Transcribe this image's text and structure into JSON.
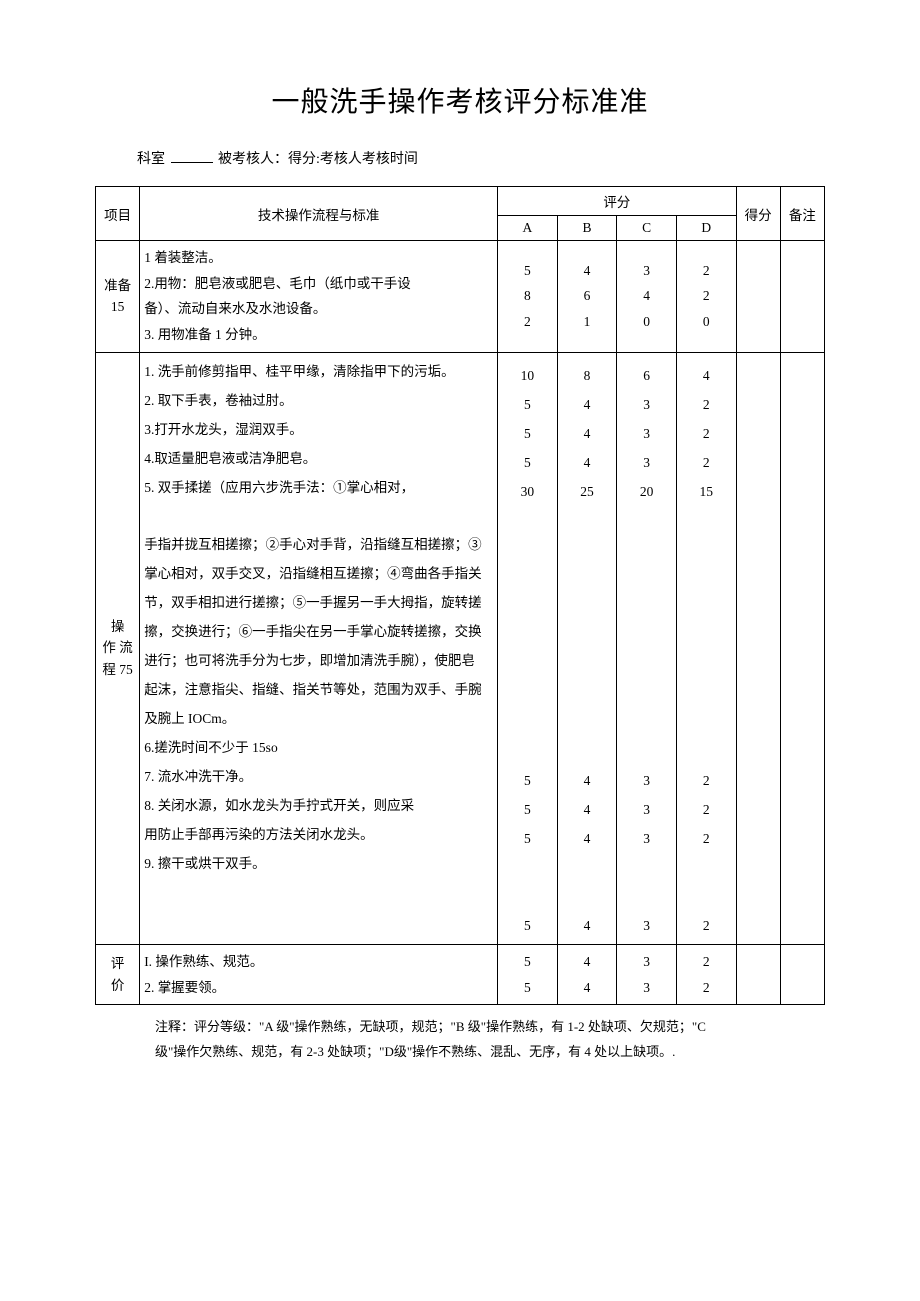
{
  "title": "一般洗手操作考核评分标准准",
  "meta": {
    "dept_label": "科室",
    "examinee_label": "被考核人：得分:考核人考核时间"
  },
  "headers": {
    "item": "项目",
    "desc": "技术操作流程与标准",
    "score_group": "评分",
    "A": "A",
    "B": "B",
    "C": "C",
    "D": "D",
    "got": "得分",
    "note": "备注"
  },
  "sections": {
    "prep": {
      "label_l1": "准备",
      "label_l2": "15",
      "lines": [
        "1 着装整洁。",
        "2.用物：肥皂液或肥皂、毛巾（纸巾或干手设",
        "备）、流动自来水及水池设备。",
        "3. 用物准备 1 分钟。"
      ],
      "grades": {
        "A": [
          "5",
          "8",
          "",
          "2"
        ],
        "B": [
          "4",
          "6",
          "",
          "1"
        ],
        "C": [
          "3",
          "4",
          "",
          "0"
        ],
        "D": [
          "2",
          "2",
          "",
          "0"
        ]
      }
    },
    "ops": {
      "label_l1": "操",
      "label_l2": "作 流",
      "label_l3": "程 75",
      "steps": [
        "1. 洗手前修剪指甲、桂平甲缘，清除指甲下的污垢。",
        "2. 取下手表，卷袖过肘。",
        "3.打开水龙头，湿润双手。",
        "4.取适量肥皂液或洁净肥皂。",
        "5. 双手揉搓（应用六步洗手法：①掌心相对，",
        "",
        "手指并拢互相搓擦；②手心对手背，沿指缝互相搓擦；③",
        "掌心相对，双手交叉，沿指缝相互搓擦；④弯曲各手指关",
        "节，双手相扣进行搓擦；⑤一手握另一手大拇指，旋转搓",
        "擦，交换进行；⑥一手指尖在另一手掌心旋转搓擦，交换",
        "进行；也可将洗手分为七步，即增加清洗手腕），使肥皂",
        "起沫，注意指尖、指缝、指关节等处，范围为双手、手腕",
        "及腕上 IOCm。",
        "6.搓洗时间不少于 15so",
        "",
        "7. 流水冲洗干净。",
        "8. 关闭水源，如水龙头为手拧式开关，则应采",
        "用防止手部再污染的方法关闭水龙头。",
        "",
        "9. 擦干或烘干双手。"
      ],
      "gradesA": [
        "10",
        "5",
        "5",
        "5",
        "30",
        "",
        "",
        "",
        "",
        "",
        "",
        "",
        "",
        "",
        "5",
        "5",
        "5",
        "",
        "",
        "5"
      ],
      "gradesB": [
        "8",
        "4",
        "4",
        "4",
        "25",
        "",
        "",
        "",
        "",
        "",
        "",
        "",
        "",
        "",
        "4",
        "4",
        "4",
        "",
        "",
        "4"
      ],
      "gradesC": [
        "6",
        "3",
        "3",
        "3",
        "20",
        "",
        "",
        "",
        "",
        "",
        "",
        "",
        "",
        "",
        "3",
        "3",
        "3",
        "",
        "",
        "3"
      ],
      "gradesD": [
        "4",
        "2",
        "2",
        "2",
        "15",
        "",
        "",
        "",
        "",
        "",
        "",
        "",
        "",
        "",
        "2",
        "2",
        "2",
        "",
        "",
        "2"
      ]
    },
    "eval": {
      "label_l1": "评",
      "label_l2": "价",
      "lines": [
        "I. 操作熟练、规范。",
        "2. 掌握要领。"
      ],
      "grades": {
        "A": [
          "5",
          "5"
        ],
        "B": [
          "4",
          "4"
        ],
        "C": [
          "3",
          "3"
        ],
        "D": [
          "2",
          "2"
        ]
      }
    }
  },
  "footnote_l1": "注释：评分等级：\"A 级\"操作熟练，无缺项，规范；\"B 级\"操作熟练，有 1-2 处缺项、欠规范；\"C",
  "footnote_l2": "级\"操作欠熟练、规范，有 2-3 处缺项；\"D级\"操作不熟练、混乱、无序，有 4 处以上缺项。."
}
